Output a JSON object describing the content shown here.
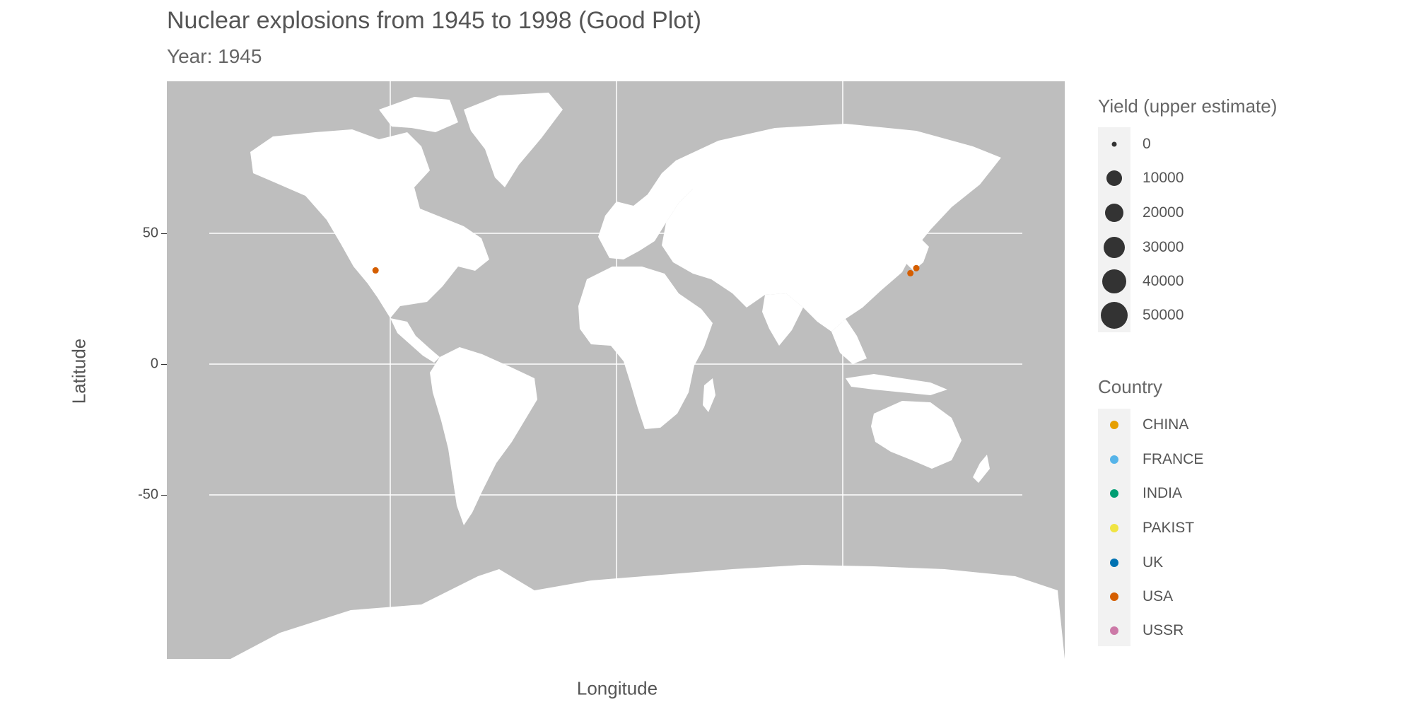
{
  "title": "Nuclear explosions from 1945 to 1998 (Good Plot)",
  "subtitle": "Year: 1945",
  "axes": {
    "xlabel": "Longitude",
    "ylabel": "Latitude",
    "yticks": [
      "50",
      "0",
      "-50"
    ]
  },
  "map": {
    "land_color": "#ffffff",
    "ocean_color": "#bebebe",
    "grid_color": "#ffffff",
    "projection": "mercator"
  },
  "chart_data": {
    "type": "scatter",
    "x_field": "longitude",
    "y_field": "latitude",
    "ytick_values": [
      50,
      0,
      -50
    ],
    "points": [
      {
        "country": "USA",
        "lon": -106.5,
        "lat": 33.7,
        "yield": 21
      },
      {
        "country": "USA",
        "lon": 132.5,
        "lat": 34.4,
        "yield": 15
      },
      {
        "country": "USA",
        "lon": 129.9,
        "lat": 32.8,
        "yield": 21
      }
    ]
  },
  "legend_size": {
    "title": "Yield (upper estimate)",
    "items": [
      {
        "label": "0",
        "value": 0
      },
      {
        "label": "10000",
        "value": 10000
      },
      {
        "label": "20000",
        "value": 20000
      },
      {
        "label": "30000",
        "value": 30000
      },
      {
        "label": "40000",
        "value": 40000
      },
      {
        "label": "50000",
        "value": 50000
      }
    ],
    "symbol_color": "#333333"
  },
  "legend_color": {
    "title": "Country",
    "items": [
      {
        "label": "CHINA",
        "color": "#E69F00"
      },
      {
        "label": "FRANCE",
        "color": "#56B4E9"
      },
      {
        "label": "INDIA",
        "color": "#009E73"
      },
      {
        "label": "PAKIST",
        "color": "#F0E442"
      },
      {
        "label": "UK",
        "color": "#0072B2"
      },
      {
        "label": "USA",
        "color": "#D55E00"
      },
      {
        "label": "USSR",
        "color": "#CC79A7"
      }
    ]
  }
}
